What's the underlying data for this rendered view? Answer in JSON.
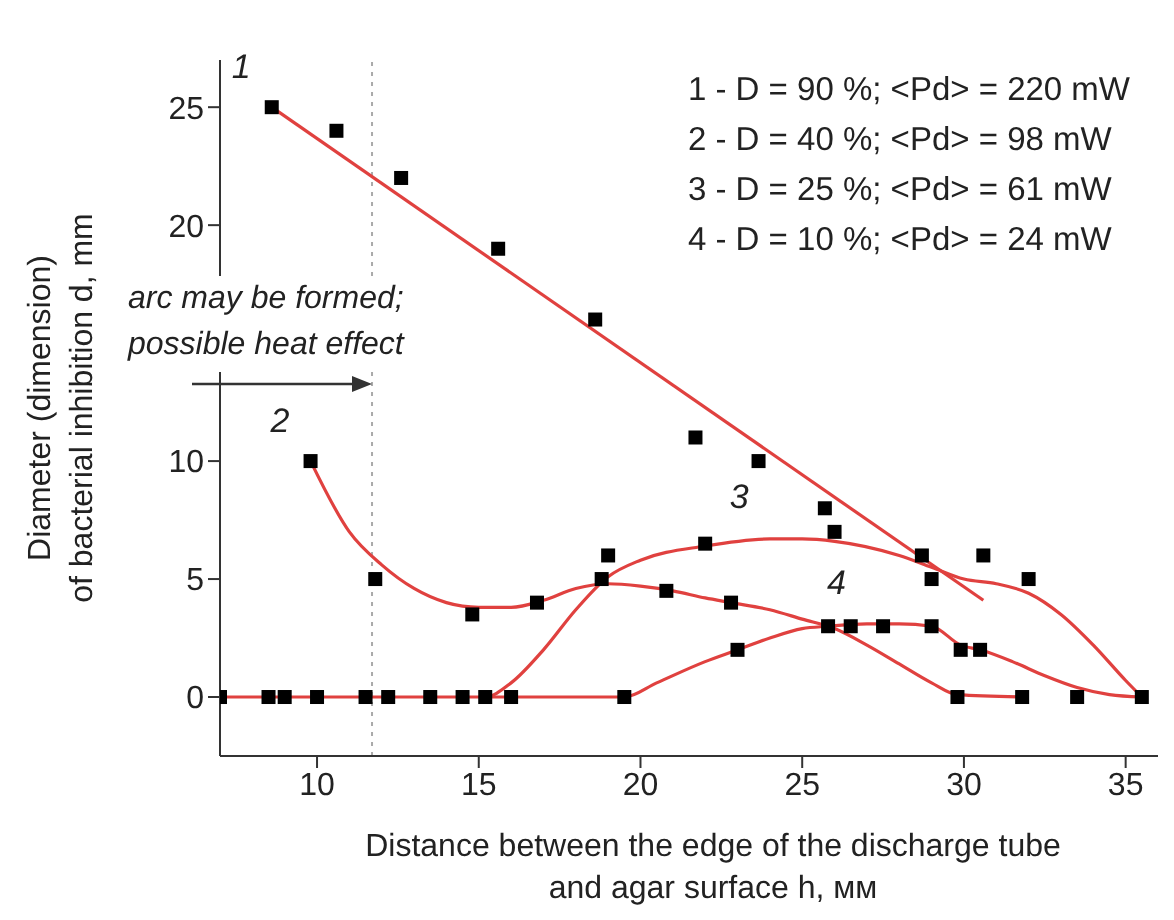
{
  "chart_data": {
    "type": "scatter",
    "xlabel": "Distance between the edge of the discharge tube\nand agar surface h, мм",
    "ylabel": "Diameter (dimension)\nof bacterial inhibition d, mm",
    "xlim": [
      7,
      36
    ],
    "ylim": [
      -2.5,
      27
    ],
    "xticks": [
      10,
      15,
      20,
      25,
      30,
      35
    ],
    "yticks": [
      0,
      5,
      10,
      20,
      25
    ],
    "grid": false,
    "legend": false,
    "marker": "square",
    "annotations": [
      "1 - D = 90 %; <Pd> = 220 mW",
      "2 - D = 40 %; <Pd> = 98 mW",
      "3 - D = 25 %; <Pd> = 61 mW",
      "4 - D = 10 %; <Pd> = 24 mW",
      {
        "text": "arc may be formed;\npossible heat effect",
        "x": 11.7,
        "y": 13.3
      }
    ],
    "ref_lines": [
      {
        "axis": "x",
        "value": 11.7,
        "color": "#aaaaaa",
        "line_style": "dotted"
      }
    ],
    "series": [
      {
        "color": "#000000",
        "x": [
          8.6,
          10.6,
          12.6,
          15.6,
          18.6,
          21.7,
          23.65,
          25.7,
          26.0,
          28.7
        ],
        "values": [
          25,
          24,
          22,
          19,
          16,
          11,
          10,
          8,
          7,
          6
        ]
      },
      {
        "color": "#000000",
        "x": [
          9.8,
          11.8,
          14.8,
          16.8,
          18.8,
          20.8,
          22.8,
          29.8,
          31.8
        ],
        "values": [
          10,
          5,
          3.5,
          4,
          5,
          4.5,
          4,
          0,
          0
        ]
      },
      {
        "color": "#000000",
        "x": [
          7,
          8.5,
          9,
          10,
          11.5,
          12.2,
          13.5,
          14.5,
          15.2,
          19,
          22,
          29,
          30.6,
          32,
          35.5
        ],
        "values": [
          0,
          0,
          0,
          0,
          0,
          0,
          0,
          0,
          0,
          6,
          6.5,
          5,
          6,
          5,
          0
        ]
      },
      {
        "color": "#000000",
        "x": [
          16,
          19.5,
          23,
          25.8,
          26.5,
          27.5,
          29,
          29.9,
          30.5,
          33.5
        ],
        "values": [
          0,
          0,
          2,
          3,
          3,
          3,
          3,
          2,
          2,
          0
        ]
      },
      {
        "type": "line",
        "name": "1",
        "marker": "none",
        "color": "#e0413f",
        "x": [
          8.6,
          30.6
        ],
        "values": [
          25,
          4.1
        ]
      },
      {
        "type": "line",
        "name": "2",
        "marker": "none",
        "color": "#e0413f",
        "x": [
          9.8,
          11,
          12,
          13,
          14,
          15,
          16,
          17,
          18,
          19,
          20,
          21,
          22,
          22.8,
          24,
          25,
          26,
          27,
          28,
          29,
          29.8,
          31.8
        ],
        "values": [
          10,
          7,
          5.6,
          4.6,
          4,
          3.8,
          3.8,
          4.1,
          4.6,
          4.8,
          4.7,
          4.5,
          4.2,
          4,
          3.7,
          3.3,
          2.9,
          2.2,
          1.4,
          0.6,
          0.1,
          0
        ]
      },
      {
        "type": "line",
        "name": "3",
        "marker": "none",
        "color": "#e0413f",
        "x": [
          7,
          15.2,
          16,
          17,
          18,
          19,
          20,
          22,
          24,
          25,
          26,
          28,
          29,
          30,
          31,
          32,
          33,
          34,
          35,
          35.5
        ],
        "values": [
          0,
          0,
          0.6,
          2,
          3.7,
          5.1,
          5.8,
          6.4,
          6.7,
          6.7,
          6.6,
          6,
          5.5,
          5,
          4.8,
          4.4,
          3.5,
          2.2,
          0.7,
          0
        ]
      },
      {
        "type": "line",
        "name": "4",
        "marker": "none",
        "color": "#e0413f",
        "x": [
          15.2,
          19.5,
          20.5,
          22,
          23,
          24,
          25,
          25.8,
          27,
          28,
          29,
          29.9,
          30.5,
          31.5,
          32.5,
          33.5,
          34.5,
          35.5
        ],
        "values": [
          0,
          0,
          0.6,
          1.5,
          2,
          2.5,
          2.9,
          3,
          3.1,
          3.1,
          3,
          2.2,
          2,
          1.5,
          0.9,
          0.4,
          0.1,
          0
        ]
      }
    ]
  }
}
